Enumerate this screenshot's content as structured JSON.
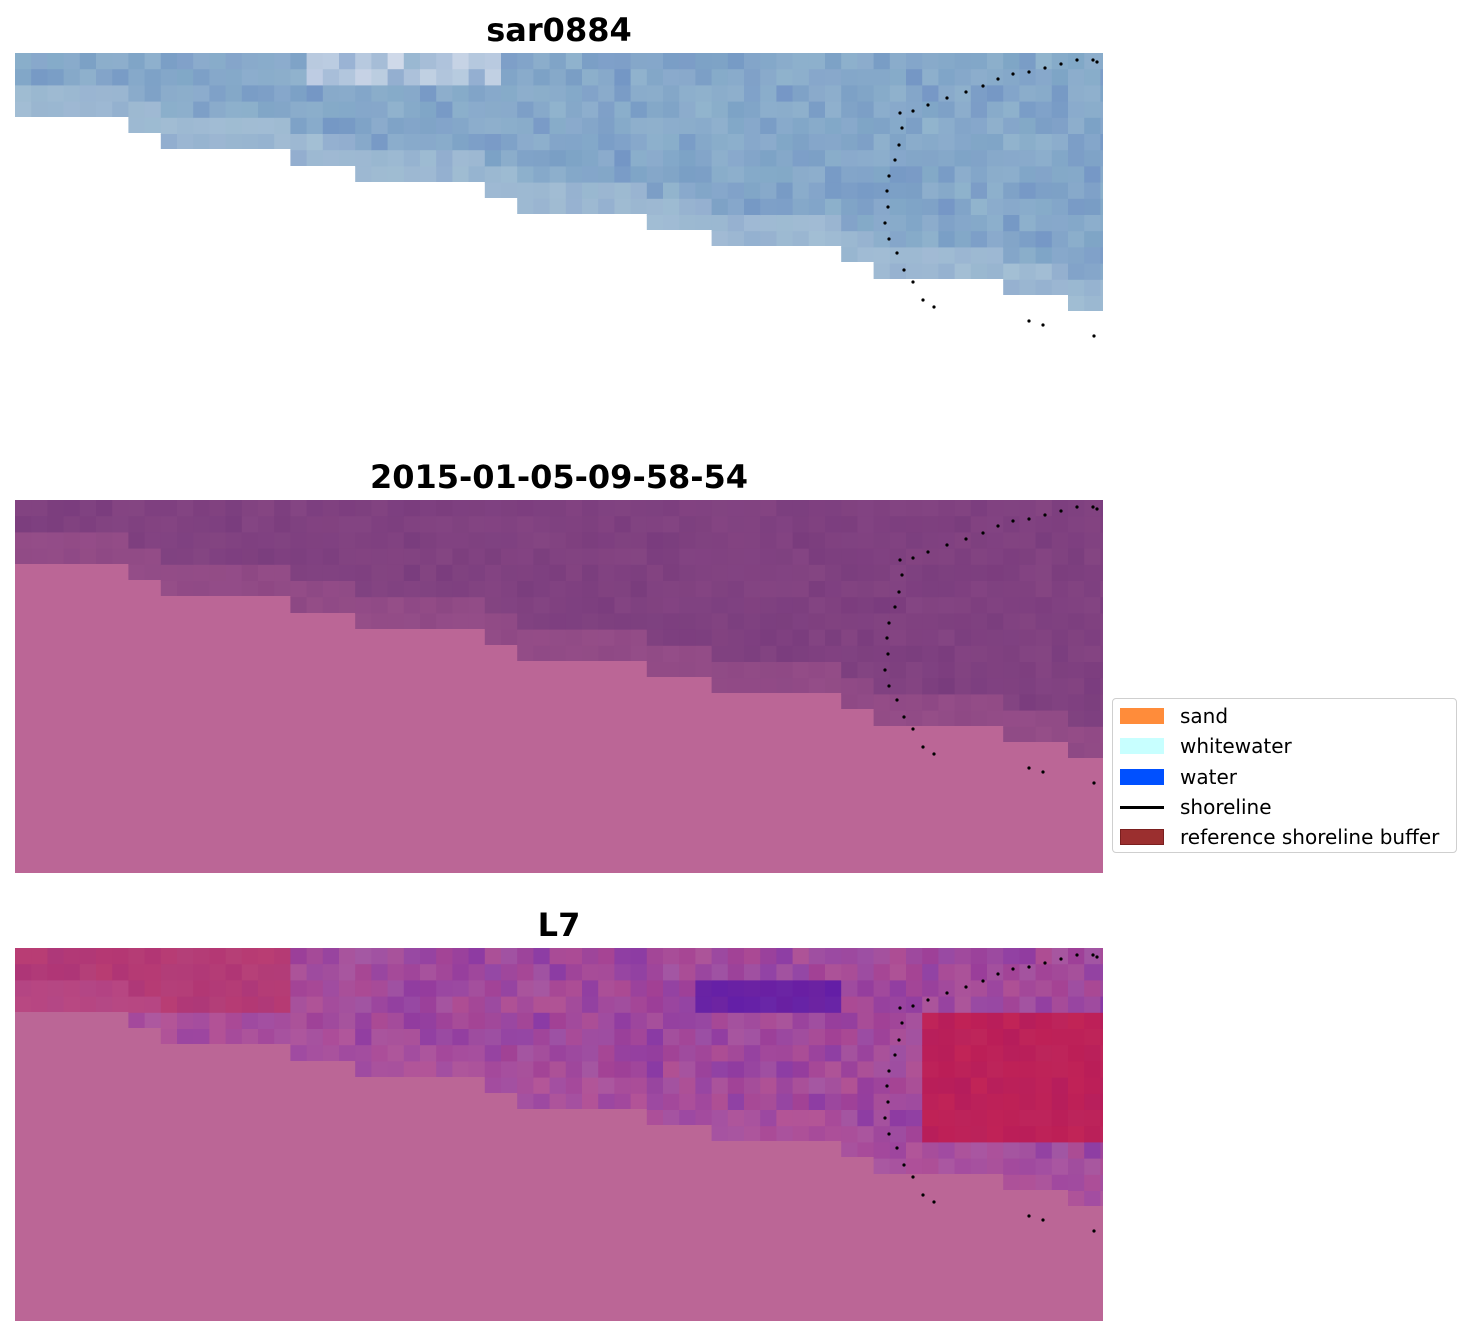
{
  "panels": [
    {
      "title": "sar0884",
      "base": "#7fa6c6",
      "light": "#a9c6d6",
      "dark": "#6f8fc4",
      "mask": "#ffffff",
      "fine": "#c9d8e2"
    },
    {
      "title": "2015-01-05-09-58-54",
      "base": "#7e4080",
      "light": "#8e4c86",
      "dark": "#773a7c",
      "mask": "#bb6696",
      "fine": "#b35e92"
    },
    {
      "title": "L7",
      "base": "#a459a4",
      "light": "#c3497e",
      "dark": "#7c2ba6",
      "mask": "#bb6696",
      "fine": "#b85b9c"
    }
  ],
  "legend": {
    "items": [
      {
        "label": "sand",
        "color": "#ff8c3a",
        "kind": "patch"
      },
      {
        "label": "whitewater",
        "color": "#c8ffff",
        "kind": "patch"
      },
      {
        "label": "water",
        "color": "#0050ff",
        "kind": "patch"
      },
      {
        "label": "shoreline",
        "color": "#000000",
        "kind": "line"
      },
      {
        "label": "reference shoreline buffer",
        "color": "#9b2f2f",
        "kind": "patch"
      }
    ]
  }
}
